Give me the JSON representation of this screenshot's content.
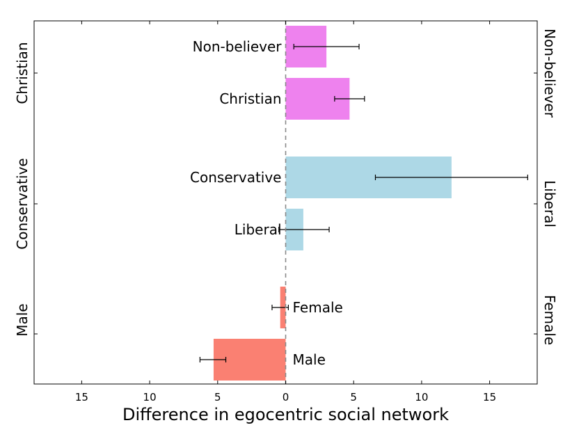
{
  "chart_data": {
    "type": "bar",
    "orientation": "horizontal",
    "xlabel": "Difference in egocentric social network",
    "xlim": [
      -18.5,
      18.5
    ],
    "xticks": [
      -15,
      -10,
      -5,
      0,
      5,
      10,
      15
    ],
    "xtick_labels": [
      "15",
      "10",
      "5",
      "0",
      "5",
      "10",
      "15"
    ],
    "zero_line": "dashed",
    "groups": [
      {
        "name": "religion",
        "color": "#ee82ee",
        "left_label": "Christian",
        "right_label": "Non-believer",
        "bars": [
          {
            "label": "Non-believer",
            "value": 3.0,
            "err_low": 0.6,
            "err_high": 5.4
          },
          {
            "label": "Christian",
            "value": 4.7,
            "err_low": 3.6,
            "err_high": 5.8
          }
        ]
      },
      {
        "name": "politics",
        "color": "#add8e6",
        "left_label": "Conservative",
        "right_label": "Liberal",
        "bars": [
          {
            "label": "Conservative",
            "value": 12.2,
            "err_low": 6.6,
            "err_high": 17.8
          },
          {
            "label": "Liberal",
            "value": 1.3,
            "err_low": -0.5,
            "err_high": 3.2
          }
        ]
      },
      {
        "name": "gender",
        "color": "#fa8072",
        "left_label": "Male",
        "right_label": "Female",
        "bars": [
          {
            "label": "Female",
            "value": -0.4,
            "err_low": -1.0,
            "err_high": 0.2
          },
          {
            "label": "Male",
            "value": -5.3,
            "err_low": -6.3,
            "err_high": -4.4
          }
        ]
      }
    ]
  }
}
